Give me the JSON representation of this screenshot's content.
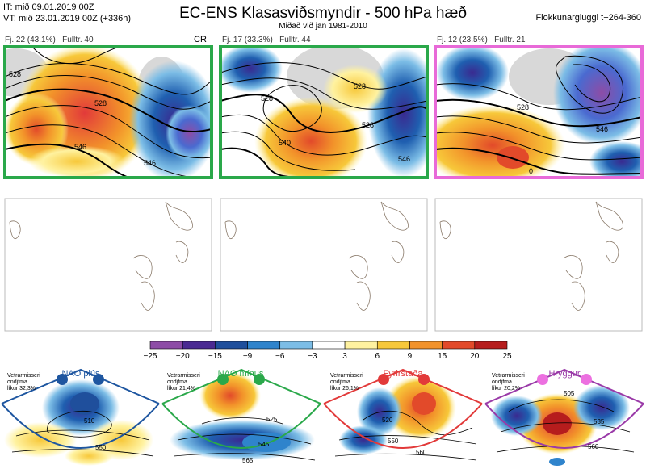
{
  "header": {
    "init_time": "IT: mið 09.01.2019 00Z",
    "valid_time": "VT: mið 23.01.2019 00Z  (+336h)",
    "title": "EC-ENS Klasasviðsmyndir - 500 hPa hæð",
    "subtitle": "Miðað við jan 1981-2010",
    "cluster_window": "Flokkunargluggi t+264-360"
  },
  "clusters": [
    {
      "label": "Fj. 22 (43.1%)",
      "fulltr": "Fulltr. 40",
      "tag": "CR",
      "border_color": "#2aa84a"
    },
    {
      "label": "Fj. 17 (33.3%)",
      "fulltr": "Fulltr. 44",
      "tag": "",
      "border_color": "#2aa84a"
    },
    {
      "label": "Fj. 12 (23.5%)",
      "fulltr": "Fulltr. 21",
      "tag": "",
      "border_color": "#e86ad8"
    }
  ],
  "colorbar": {
    "ticks": [
      "−25",
      "−20",
      "−15",
      "−9",
      "−6",
      "−3",
      "3",
      "6",
      "9",
      "15",
      "20",
      "25"
    ],
    "colors": [
      "#8d4ca6",
      "#4a2a92",
      "#1f4f9c",
      "#2f84cc",
      "#7cbde6",
      "#ffffff",
      "#fff2a0",
      "#f7c83a",
      "#f2922a",
      "#e24a2a",
      "#b61d1d"
    ]
  },
  "regimes": [
    {
      "name": "NAO plús",
      "season": "Vetrarmisseri",
      "desc": "ondjfma",
      "prob": "líkur 32,3%",
      "color": "#1e56a0",
      "dot_color": "#1e56a0",
      "contours": [
        "510",
        "550"
      ]
    },
    {
      "name": "NAO mínus",
      "season": "Vetrarmisseri",
      "desc": "ondjfma",
      "prob": "líkur 21,4%",
      "color": "#2aa84a",
      "dot_color": "#2aa84a",
      "contours": [
        "525",
        "545",
        "565"
      ]
    },
    {
      "name": "Fyrirstaða",
      "season": "Vetrarmisseri",
      "desc": "ondjfma",
      "prob": "líkur 26,1%",
      "color": "#e23a3a",
      "dot_color": "#e23a3a",
      "contours": [
        "520",
        "550",
        "560"
      ]
    },
    {
      "name": "Hryggur",
      "season": "Vetrarmisseri",
      "desc": "ondjfma",
      "prob": "líkur 20,2%",
      "color": "#9a3aa8",
      "dot_color": "#ec70e0",
      "contours": [
        "505",
        "535",
        "560"
      ]
    }
  ],
  "chart_data": {
    "type": "heatmap",
    "title": "EC-ENS Klasasviðsmyndir - 500 hPa hæð",
    "subtitle": "Miðað við jan 1981-2010",
    "colorbar_ticks": [
      -25,
      -20,
      -15,
      -9,
      -6,
      -3,
      3,
      6,
      9,
      15,
      20,
      25
    ],
    "clusters": [
      {
        "label": "Fj. 22 (43.1%)",
        "probability": 43.1,
        "representative": 40,
        "contours": [
          "528",
          "546"
        ]
      },
      {
        "label": "Fj. 17 (33.3%)",
        "probability": 33.3,
        "representative": 44,
        "contours": [
          "528",
          "540",
          "546"
        ]
      },
      {
        "label": "Fj. 12 (23.5%)",
        "probability": 23.5,
        "representative": 21,
        "contours": [
          "528",
          "546",
          "0"
        ]
      }
    ],
    "regime_probabilities": [
      {
        "name": "NAO plús",
        "prob": 32.3
      },
      {
        "name": "NAO mínus",
        "prob": 21.4
      },
      {
        "name": "Fyrirstaða",
        "prob": 26.1
      },
      {
        "name": "Hryggur",
        "prob": 20.2
      }
    ]
  }
}
